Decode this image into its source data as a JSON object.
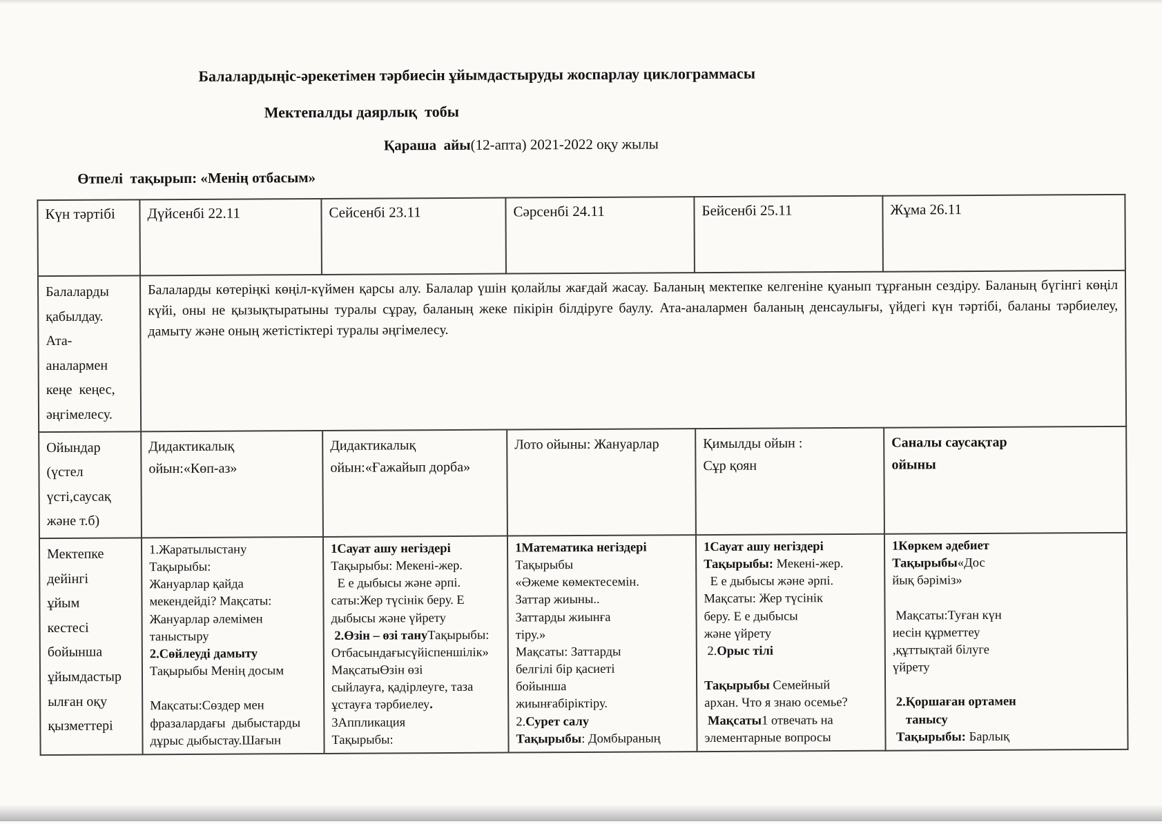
{
  "titles": {
    "line1": "Балалардыңіс-әрекетімен тәрбиесін ұйымдастыруды жоспарлау циклограммасы",
    "line2": "Мектепалды даярлық  тобы",
    "line3_bold": "Қараша  айы",
    "line3_rest": "(12-апта) 2021-2022 оқу жылы",
    "transition_theme": "Өтпелі  тақырып: «Менің отбасым»"
  },
  "table": {
    "header": {
      "col0": "Күн тәртібі",
      "days": [
        "Дүйсенбі 22.11",
        "Сейсенбі 23.11",
        "Сәрсенбі 24.11",
        "Бейсенбі 25.11",
        "Жұма 26.11"
      ]
    },
    "reception_row": {
      "label": "Балаларды\nқабылдау.\nАта-\nаналармен\nкеңе  кеңес,\nәңгімелесу.",
      "text": "Балаларды көтеріңкі көңіл-күймен қарсы алу. Балалар үшін қолайлы жағдай жасау. Баланың мектепке келгеніне қуанып тұрғанын сездіру. Баланың бүгінгі көңіл күйі, оны не қызықтыратыны туралы сұрау, баланың жеке пікірін білдіруге баулу. Ата-аналармен баланың денсаулығы, үйдегі күн тәртібі, баланы тәрбиелеу, дамыту және оның жетістіктері туралы әңгімелесу."
    },
    "games_row": {
      "label": "Ойындар\n(үстел\nүсті,саусақ\nжәне т.б)",
      "cells": [
        {
          "segments": [
            {
              "b": false,
              "t": "Дидактикалық\nойын:«Көп-аз»"
            }
          ]
        },
        {
          "segments": [
            {
              "b": false,
              "t": "Дидактикалық\nойын:«Ғажайып дорба»"
            }
          ]
        },
        {
          "segments": [
            {
              "b": false,
              "t": "Лото ойыны: Жануарлар"
            }
          ]
        },
        {
          "segments": [
            {
              "b": false,
              "t": "Қимылды ойын :\nСұр қоян"
            }
          ]
        },
        {
          "segments": [
            {
              "b": true,
              "t": "Саналы саусақтар\nойыны"
            }
          ]
        }
      ]
    },
    "lessons_row": {
      "label": "Мектепке\nдейінгі\nұйым\nкестесі\nбойынша\nұйымдастыр\nылған оқу\nқызметтері",
      "cells": [
        {
          "segments": [
            {
              "b": false,
              "t": "1.Жаратылыстану\nТақырыбы:\nЖануарлар қайда\nмекендейді? Мақсаты:\nЖануарлар әлемімен\nтаныстыру\n"
            },
            {
              "b": true,
              "t": "2.Сөйлеуді дамыту"
            },
            {
              "b": false,
              "t": "\nТақырыбы Менің досым\n\nМақсаты:Сөздер мен\nфразалардағы  дыбыстарды\nдұрыс дыбыстау.Шағын"
            }
          ]
        },
        {
          "segments": [
            {
              "b": true,
              "t": "1Сауат ашу негіздері"
            },
            {
              "b": false,
              "t": "\nТақырыбы: Мекені-жер.\n  Е е дыбысы және әрпі.\nсаты:Жер түсінік беру. Е\nдыбысы және үйрету\n "
            },
            {
              "b": true,
              "t": "2.Өзін – өзі тану"
            },
            {
              "b": false,
              "t": "Тақырыбы:\nОтбасындағысүйіспеншілік»\nМақсатыӨзін өзі\nсыйлауға, қадірлеуге, таза\nұстауға тәрбиелеу"
            },
            {
              "b": true,
              "t": "."
            },
            {
              "b": false,
              "t": "\n3Аппликация\nТақырыбы:"
            }
          ]
        },
        {
          "segments": [
            {
              "b": true,
              "t": "1Математика негіздері"
            },
            {
              "b": false,
              "t": "\nТақырыбы\n«Әжеме көмектесемін.\nЗаттар жиыны..\nЗаттарды жиынға\nтіру.»\nМақсаты: Заттарды\nбелгілі бір қасиеті\nбойынша\nжиынғабіріктіру.\n2."
            },
            {
              "b": true,
              "t": "Сурет салу"
            },
            {
              "b": false,
              "t": "\n"
            },
            {
              "b": true,
              "t": "Тақырыбы"
            },
            {
              "b": false,
              "t": ": Домбыраның"
            }
          ]
        },
        {
          "segments": [
            {
              "b": true,
              "t": "1Сауат ашу негіздері"
            },
            {
              "b": false,
              "t": "\n"
            },
            {
              "b": true,
              "t": "Тақырыбы:"
            },
            {
              "b": false,
              "t": " Мекені-жер.\n  Е е дыбысы және әрпі.\nМақсаты: Жер түсінік\nберу. Е е дыбысы\nжәне үйрету\n 2."
            },
            {
              "b": true,
              "t": "Орыс тілі"
            },
            {
              "b": false,
              "t": "\n\n"
            },
            {
              "b": true,
              "t": "Тақырыбы"
            },
            {
              "b": false,
              "t": " Семейный\nархан. Что я знаю осемье?\n "
            },
            {
              "b": true,
              "t": "Мақсаты"
            },
            {
              "b": false,
              "t": "1 отвечать на\nэлементарные вопросы"
            }
          ]
        },
        {
          "segments": [
            {
              "b": true,
              "t": "1Көркем әдебиет"
            },
            {
              "b": false,
              "t": "\n"
            },
            {
              "b": true,
              "t": "Тақырыбы"
            },
            {
              "b": false,
              "t": "«Дос\nйық бәріміз»\n\n Мақсаты:Туған күн\nиесін құрметтеу\n,құттықтай білуге\nүйрету\n\n "
            },
            {
              "b": true,
              "t": "2.Қоршаған ортамен\n    танысу"
            },
            {
              "b": false,
              "t": "\n "
            },
            {
              "b": true,
              "t": "Тақырыбы:"
            },
            {
              "b": false,
              "t": " Барлық"
            }
          ]
        }
      ]
    }
  }
}
